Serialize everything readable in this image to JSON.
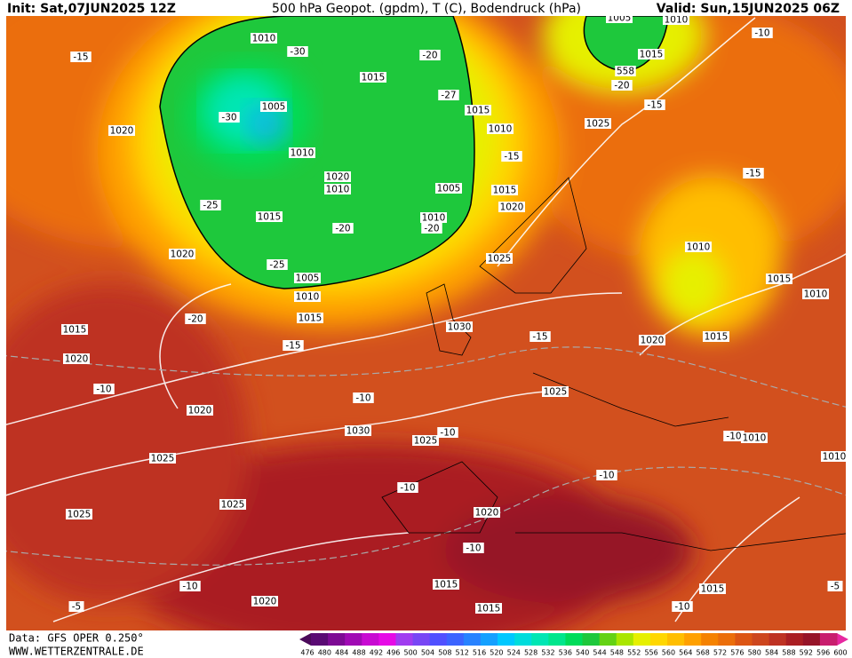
{
  "header": {
    "init": "Init: Sat,07JUN2025 12Z",
    "title": "500 hPa Geopot. (gpdm), T (C), Bodendruck (hPa)",
    "valid": "Valid: Sun,15JUN2025 06Z"
  },
  "footer": {
    "data": "Data: GFS OPER 0.250°",
    "site": "WWW.WETTERZENTRALE.DE"
  },
  "colorbar": {
    "levels": [
      476,
      480,
      484,
      488,
      492,
      496,
      500,
      504,
      508,
      512,
      516,
      520,
      524,
      528,
      532,
      536,
      540,
      544,
      548,
      552,
      556,
      560,
      564,
      568,
      572,
      576,
      580,
      584,
      588,
      592,
      596,
      600
    ],
    "colors": [
      "#5a0a73",
      "#7d0a94",
      "#a00ab4",
      "#c80ad2",
      "#e60ae6",
      "#a03cf0",
      "#7846f5",
      "#5050ff",
      "#3c64ff",
      "#2882ff",
      "#14a0ff",
      "#00c8ff",
      "#00dcdc",
      "#00e6b4",
      "#00e68c",
      "#00dc5a",
      "#1ec83c",
      "#64d214",
      "#aae600",
      "#e6f000",
      "#ffd700",
      "#ffbe00",
      "#ffa000",
      "#f58200",
      "#eb6e0a",
      "#dc5514",
      "#cd461e",
      "#be3223",
      "#aa1e23",
      "#961428",
      "#c81e6e"
    ]
  },
  "map": {
    "labels": [
      1010,
      -30,
      -20,
      1005,
      1010,
      -10,
      -15,
      1015,
      558,
      -20,
      1015,
      -27,
      -15,
      1005,
      -30,
      1015,
      1020,
      1010,
      1025,
      1010,
      -15,
      -15,
      1020,
      1010,
      1005,
      1015,
      -25,
      1020,
      1015,
      1010,
      -20,
      -20,
      1010,
      1020,
      1025,
      -25,
      1005,
      1015,
      1010,
      1010,
      -20,
      1015,
      1015,
      1030,
      -15,
      1020,
      1015,
      -15,
      1020,
      -10,
      1025,
      -10,
      1020,
      -10,
      1010,
      1030,
      -10,
      1025,
      1025,
      1010,
      -10,
      -10,
      1020,
      1025,
      1025,
      -10,
      -10,
      1015,
      1015,
      -5,
      -5,
      1020,
      1015,
      -10
    ]
  }
}
